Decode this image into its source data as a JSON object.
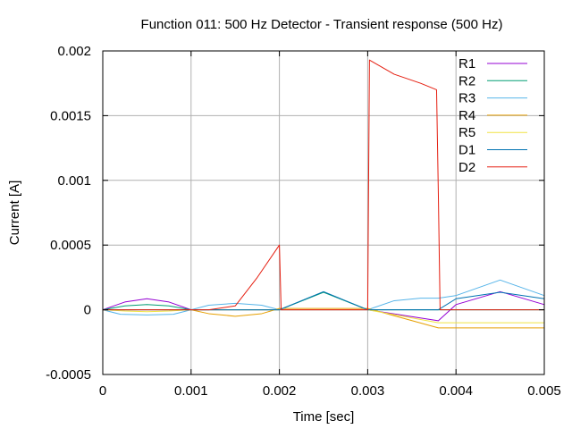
{
  "chart_data": {
    "type": "line",
    "title": "Function 011: 500 Hz Detector - Transient response (500 Hz)",
    "xlabel": "Time [sec]",
    "ylabel": "Current [A]",
    "xlim": [
      0,
      0.005
    ],
    "ylim": [
      -0.0005,
      0.002
    ],
    "xticks": [
      0,
      0.001,
      0.002,
      0.003,
      0.004,
      0.005
    ],
    "xtick_labels": [
      "0",
      "0.001",
      "0.002",
      "0.003",
      "0.004",
      "0.005"
    ],
    "yticks": [
      -0.0005,
      0,
      0.0005,
      0.001,
      0.0015,
      0.002
    ],
    "ytick_labels": [
      "-0.0005",
      "0",
      "0.0005",
      "0.001",
      "0.0015",
      "0.002"
    ],
    "grid": true,
    "legend_position": "top-right",
    "series": [
      {
        "name": "R1",
        "color": "#9400d3",
        "x": [
          0,
          0.00025,
          0.0005,
          0.00075,
          0.001,
          0.002,
          0.003,
          0.0038,
          0.004,
          0.0045,
          0.005
        ],
        "y": [
          0,
          6e-05,
          8.5e-05,
          6e-05,
          0,
          0,
          0,
          -8.5e-05,
          4e-05,
          0.00014,
          4e-05
        ]
      },
      {
        "name": "R2",
        "color": "#009e73",
        "x": [
          0,
          0.00025,
          0.0005,
          0.00075,
          0.001,
          0.002,
          0.0025,
          0.003,
          0.005
        ],
        "y": [
          0,
          3e-05,
          4e-05,
          3e-05,
          0,
          0,
          0.000135,
          0,
          0
        ]
      },
      {
        "name": "R3",
        "color": "#56b4e9",
        "x": [
          0,
          0.0002,
          0.0005,
          0.0008,
          0.001,
          0.0012,
          0.0015,
          0.0018,
          0.002,
          0.003,
          0.0033,
          0.0036,
          0.0038,
          0.004,
          0.0045,
          0.005
        ],
        "y": [
          0,
          -3.5e-05,
          -4e-05,
          -3.5e-05,
          0,
          3.5e-05,
          5e-05,
          3.5e-05,
          0,
          0,
          7e-05,
          9e-05,
          9e-05,
          0.00011,
          0.00023,
          0.00011
        ]
      },
      {
        "name": "R4",
        "color": "#e69f00",
        "x": [
          0,
          0.001,
          0.0012,
          0.0015,
          0.0018,
          0.002,
          0.003,
          0.0038,
          0.005
        ],
        "y": [
          0,
          0,
          -3e-05,
          -5e-05,
          -3e-05,
          1e-05,
          1e-05,
          -0.00014,
          -0.00014
        ]
      },
      {
        "name": "R5",
        "color": "#f0e442",
        "x": [
          0,
          0.00025,
          0.0005,
          0.00075,
          0.001,
          0.002,
          0.003,
          0.0038,
          0.005
        ],
        "y": [
          0,
          -1e-05,
          -1.5e-05,
          -1e-05,
          0,
          0,
          0,
          -0.0001,
          -0.0001
        ]
      },
      {
        "name": "D1",
        "color": "#0072b2",
        "x": [
          0,
          0.001,
          0.002,
          0.0025,
          0.003,
          0.0038,
          0.004,
          0.0045,
          0.005
        ],
        "y": [
          0,
          0,
          0,
          0.00014,
          0,
          0,
          8.5e-05,
          0.000135,
          8.5e-05
        ]
      },
      {
        "name": "D2",
        "color": "#e51e10",
        "x": [
          0,
          0.0012,
          0.0015,
          0.00175,
          0.002,
          0.00202,
          0.003,
          0.00302,
          0.0033,
          0.0036,
          0.00378,
          0.0038,
          0.00382,
          0.005
        ],
        "y": [
          0,
          0,
          3e-05,
          0.00025,
          0.0005,
          0,
          0,
          0.00193,
          0.00182,
          0.00175,
          0.0017,
          0.0009,
          0,
          0
        ]
      }
    ]
  }
}
